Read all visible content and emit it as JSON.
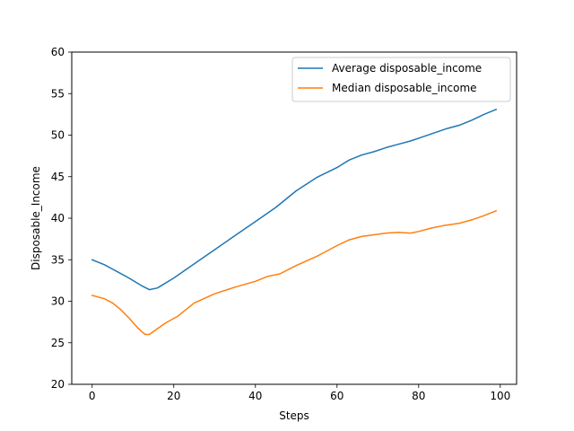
{
  "chart_data": {
    "type": "line",
    "title": "",
    "xlabel": "Steps",
    "ylabel": "Disposable_Income",
    "xlim": [
      -5,
      104
    ],
    "ylim": [
      20,
      60
    ],
    "xticks": [
      0,
      20,
      40,
      60,
      80,
      100
    ],
    "yticks": [
      20,
      25,
      30,
      35,
      40,
      45,
      50,
      55,
      60
    ],
    "grid": false,
    "legend_position": "top-right",
    "series": [
      {
        "name": "Average disposable_income",
        "color": "#1f77b4",
        "points": [
          [
            0,
            35.0
          ],
          [
            3,
            34.4
          ],
          [
            6,
            33.6
          ],
          [
            9,
            32.8
          ],
          [
            12,
            31.9
          ],
          [
            14,
            31.4
          ],
          [
            16,
            31.6
          ],
          [
            20,
            32.8
          ],
          [
            25,
            34.5
          ],
          [
            30,
            36.2
          ],
          [
            35,
            37.9
          ],
          [
            40,
            39.6
          ],
          [
            45,
            41.3
          ],
          [
            50,
            43.3
          ],
          [
            55,
            44.9
          ],
          [
            60,
            46.1
          ],
          [
            63,
            47.0
          ],
          [
            66,
            47.6
          ],
          [
            69,
            48.0
          ],
          [
            72,
            48.5
          ],
          [
            75,
            48.9
          ],
          [
            78,
            49.3
          ],
          [
            81,
            49.8
          ],
          [
            84,
            50.3
          ],
          [
            87,
            50.8
          ],
          [
            90,
            51.2
          ],
          [
            93,
            51.8
          ],
          [
            96,
            52.5
          ],
          [
            99,
            53.1
          ]
        ]
      },
      {
        "name": "Median disposable_income",
        "color": "#ff7f0e",
        "points": [
          [
            0,
            30.7
          ],
          [
            3,
            30.3
          ],
          [
            5,
            29.8
          ],
          [
            7,
            29.0
          ],
          [
            9,
            28.0
          ],
          [
            11,
            26.9
          ],
          [
            12,
            26.4
          ],
          [
            13,
            26.0
          ],
          [
            14,
            26.0
          ],
          [
            16,
            26.7
          ],
          [
            18,
            27.4
          ],
          [
            21,
            28.2
          ],
          [
            25,
            29.8
          ],
          [
            30,
            30.9
          ],
          [
            35,
            31.7
          ],
          [
            40,
            32.4
          ],
          [
            43,
            33.0
          ],
          [
            46,
            33.3
          ],
          [
            50,
            34.3
          ],
          [
            55,
            35.4
          ],
          [
            60,
            36.7
          ],
          [
            63,
            37.4
          ],
          [
            66,
            37.8
          ],
          [
            69,
            38.0
          ],
          [
            72,
            38.2
          ],
          [
            75,
            38.3
          ],
          [
            78,
            38.2
          ],
          [
            80,
            38.4
          ],
          [
            83,
            38.8
          ],
          [
            86,
            39.1
          ],
          [
            90,
            39.4
          ],
          [
            93,
            39.8
          ],
          [
            96,
            40.3
          ],
          [
            99,
            40.9
          ]
        ]
      }
    ]
  }
}
